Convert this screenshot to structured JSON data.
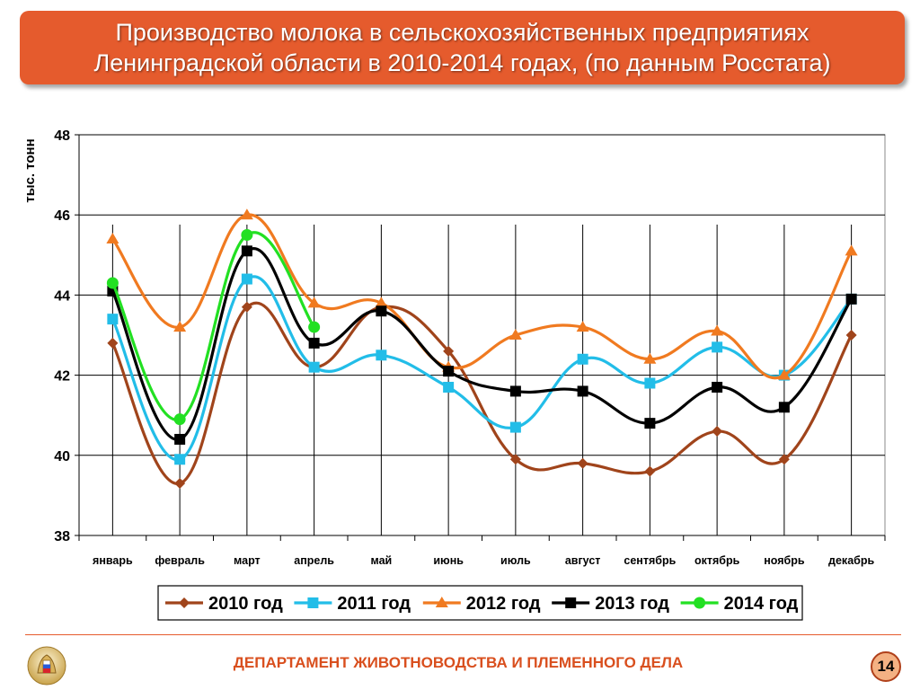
{
  "slide": {
    "title_line1": "Производство молока в сельскохозяйственных предприятиях",
    "title_line2": "Ленинградской области в 2010-2014 годах, (по данным Росстата)",
    "footer": "ДЕПАРТАМЕНТ ЖИВОТНОВОДСТВА И ПЛЕМЕННОГО ДЕЛА",
    "page_number": "14",
    "logo_icon": "emblem-icon"
  },
  "chart_data": {
    "type": "line",
    "title": "",
    "xlabel": "",
    "ylabel": "тыс. тонн",
    "ylim": [
      38,
      48
    ],
    "yticks": [
      38,
      40,
      42,
      44,
      46,
      48
    ],
    "grid": true,
    "legend_position": "bottom",
    "categories": [
      "январь",
      "февраль",
      "март",
      "апрель",
      "май",
      "июнь",
      "июль",
      "август",
      "сентябрь",
      "октябрь",
      "ноябрь",
      "декабрь"
    ],
    "series": [
      {
        "name": "2010 год",
        "color": "#a0441b",
        "marker": "diamond",
        "values": [
          42.8,
          39.3,
          43.7,
          42.2,
          43.7,
          42.6,
          39.9,
          39.8,
          39.6,
          40.6,
          39.9,
          43.0
        ]
      },
      {
        "name": "2011 год",
        "color": "#22bde8",
        "marker": "square",
        "values": [
          43.4,
          39.9,
          44.4,
          42.2,
          42.5,
          41.7,
          40.7,
          42.4,
          41.8,
          42.7,
          42.0,
          43.9
        ]
      },
      {
        "name": "2012 год",
        "color": "#f07a20",
        "marker": "triangle",
        "values": [
          45.4,
          43.2,
          46.0,
          43.8,
          43.8,
          42.2,
          43.0,
          43.2,
          42.4,
          43.1,
          42.0,
          45.1
        ]
      },
      {
        "name": "2013 год",
        "color": "#000000",
        "marker": "square",
        "values": [
          44.1,
          40.4,
          45.1,
          42.8,
          43.6,
          42.1,
          41.6,
          41.6,
          40.8,
          41.7,
          41.2,
          43.9
        ]
      },
      {
        "name": "2014 год",
        "color": "#22e022",
        "marker": "circle",
        "values": [
          44.3,
          40.9,
          45.5,
          43.2,
          null,
          null,
          null,
          null,
          null,
          null,
          null,
          null
        ]
      }
    ]
  }
}
